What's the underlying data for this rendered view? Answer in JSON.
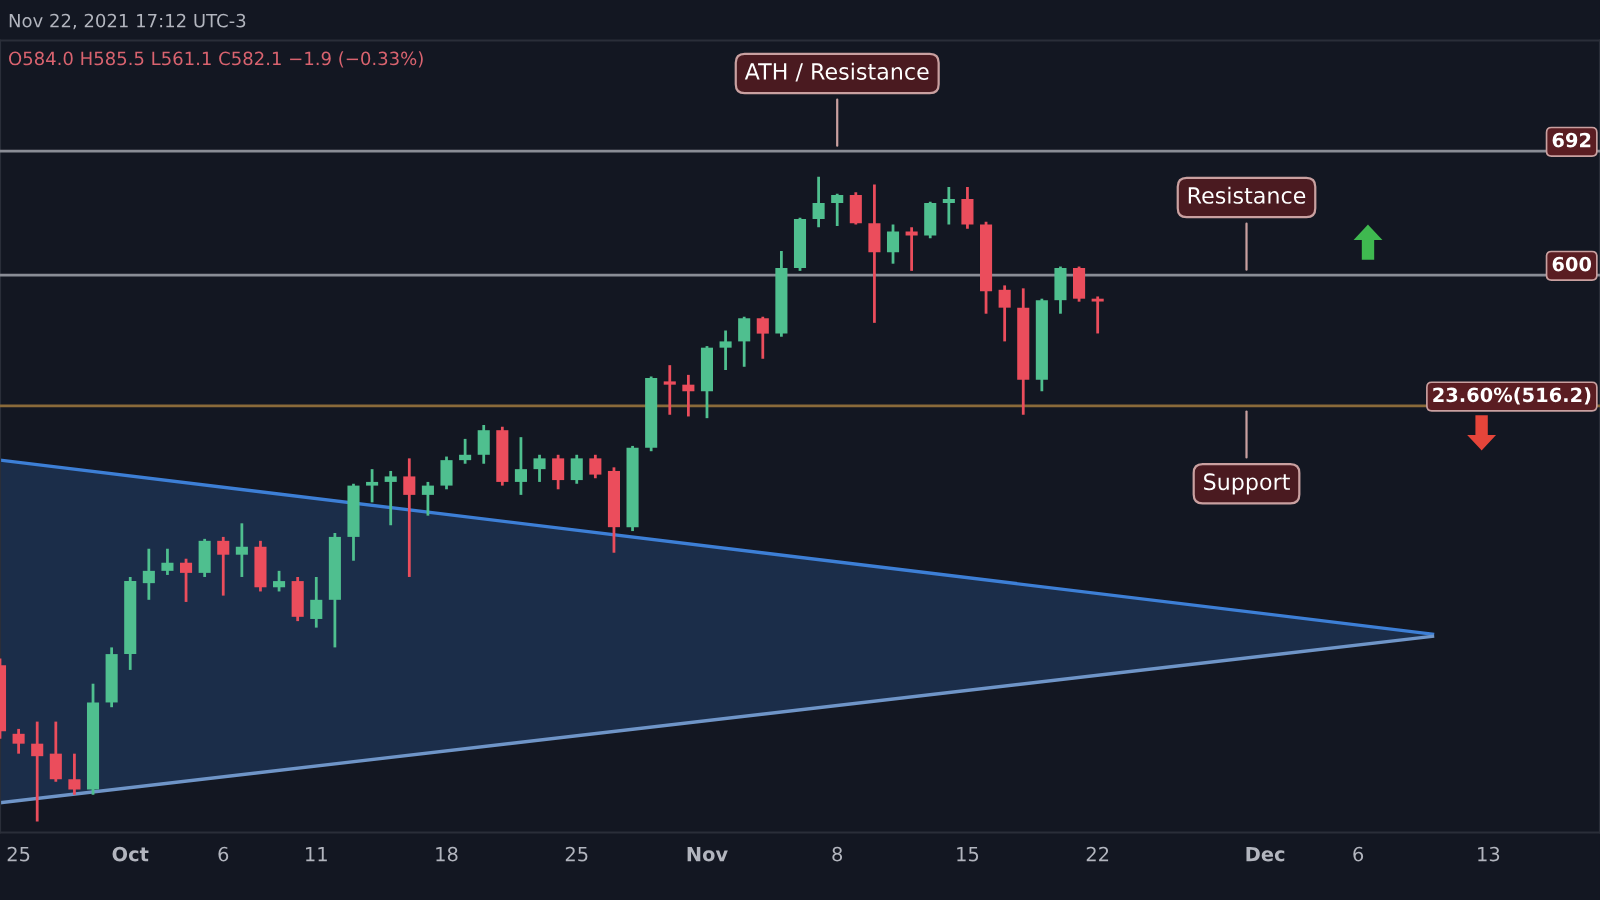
{
  "chart_data": {
    "type": "candlestick",
    "x": [
      "2021-09-24",
      "2021-09-25",
      "2021-09-26",
      "2021-09-27",
      "2021-09-28",
      "2021-09-29",
      "2021-09-30",
      "2021-10-01",
      "2021-10-02",
      "2021-10-03",
      "2021-10-04",
      "2021-10-05",
      "2021-10-06",
      "2021-10-07",
      "2021-10-08",
      "2021-10-09",
      "2021-10-10",
      "2021-10-11",
      "2021-10-12",
      "2021-10-13",
      "2021-10-14",
      "2021-10-15",
      "2021-10-16",
      "2021-10-17",
      "2021-10-18",
      "2021-10-19",
      "2021-10-20",
      "2021-10-21",
      "2021-10-22",
      "2021-10-23",
      "2021-10-24",
      "2021-10-25",
      "2021-10-26",
      "2021-10-27",
      "2021-10-28",
      "2021-10-29",
      "2021-10-30",
      "2021-10-31",
      "2021-11-01",
      "2021-11-02",
      "2021-11-03",
      "2021-11-04",
      "2021-11-05",
      "2021-11-06",
      "2021-11-07",
      "2021-11-08",
      "2021-11-09",
      "2021-11-10",
      "2021-11-11",
      "2021-11-12",
      "2021-11-13",
      "2021-11-14",
      "2021-11-15",
      "2021-11-16",
      "2021-11-17",
      "2021-11-18",
      "2021-11-19",
      "2021-11-20",
      "2021-11-21",
      "2021-11-22"
    ],
    "ohlc": [
      [
        383,
        386,
        352,
        355
      ],
      [
        354,
        356,
        346,
        350
      ],
      [
        350,
        359,
        320,
        345
      ],
      [
        346,
        359,
        335,
        336
      ],
      [
        336,
        346,
        330,
        332
      ],
      [
        332,
        375,
        330,
        367
      ],
      [
        367,
        391,
        365,
        388
      ],
      [
        388,
        424,
        381,
        422
      ],
      [
        421,
        438,
        413,
        427
      ],
      [
        427,
        438,
        425,
        431
      ],
      [
        431,
        433,
        412,
        426
      ],
      [
        426,
        443,
        424,
        442
      ],
      [
        442,
        444,
        415,
        435
      ],
      [
        435,
        451,
        424,
        439
      ],
      [
        439,
        442,
        417,
        419
      ],
      [
        419,
        427,
        417,
        422
      ],
      [
        422,
        424,
        403,
        405
      ],
      [
        404,
        424,
        400,
        413
      ],
      [
        413,
        446,
        391,
        444
      ],
      [
        444,
        472,
        432,
        471
      ],
      [
        471,
        480,
        462,
        473
      ],
      [
        473,
        479,
        450,
        476
      ],
      [
        476,
        486,
        424,
        466
      ],
      [
        466,
        473,
        455,
        471
      ],
      [
        471,
        487,
        469,
        485
      ],
      [
        485,
        497,
        483,
        488
      ],
      [
        488,
        505,
        483,
        502
      ],
      [
        502,
        504,
        471,
        473
      ],
      [
        473,
        498,
        466,
        480
      ],
      [
        480,
        488,
        473,
        486
      ],
      [
        486,
        488,
        469,
        474
      ],
      [
        474,
        488,
        472,
        486
      ],
      [
        486,
        488,
        475,
        477
      ],
      [
        479,
        481,
        436,
        449
      ],
      [
        449,
        493,
        447,
        492
      ],
      [
        492,
        534,
        490,
        533
      ],
      [
        531,
        541,
        511,
        529
      ],
      [
        529,
        535,
        510,
        525
      ],
      [
        525,
        553,
        509,
        552
      ],
      [
        552,
        563,
        538,
        556
      ],
      [
        556,
        572,
        540,
        571
      ],
      [
        571,
        572,
        545,
        561
      ],
      [
        561,
        617,
        559,
        605
      ],
      [
        605,
        641,
        603,
        640
      ],
      [
        640,
        672,
        634,
        652
      ],
      [
        652,
        659,
        635,
        658
      ],
      [
        658,
        660,
        636,
        637
      ],
      [
        637,
        666,
        568,
        616
      ],
      [
        616,
        636,
        608,
        631
      ],
      [
        631,
        634,
        603,
        628
      ],
      [
        628,
        653,
        626,
        652
      ],
      [
        652,
        664,
        636,
        655
      ],
      [
        655,
        664,
        633,
        636
      ],
      [
        636,
        638,
        574,
        589
      ],
      [
        590,
        593,
        556,
        578
      ],
      [
        578,
        591,
        511,
        532
      ],
      [
        532,
        584,
        525,
        583
      ],
      [
        583,
        606,
        574,
        605
      ],
      [
        605,
        606,
        582,
        584
      ],
      [
        584.0,
        585.5,
        561.1,
        582.1
      ]
    ],
    "colors": [
      "#eb4d5c",
      "#eb4d5c",
      "#eb4d5c",
      "#eb4d5c",
      "#eb4d5c",
      "#4fbf8f",
      "#4fbf8f",
      "#4fbf8f",
      "#4fbf8f",
      "#4fbf8f",
      "#eb4d5c",
      "#4fbf8f",
      "#eb4d5c",
      "#4fbf8f",
      "#eb4d5c",
      "#4fbf8f",
      "#eb4d5c",
      "#4fbf8f",
      "#4fbf8f",
      "#4fbf8f",
      "#4fbf8f",
      "#4fbf8f",
      "#eb4d5c",
      "#4fbf8f",
      "#4fbf8f",
      "#4fbf8f",
      "#4fbf8f",
      "#eb4d5c",
      "#4fbf8f",
      "#4fbf8f",
      "#eb4d5c",
      "#4fbf8f",
      "#eb4d5c",
      "#eb4d5c",
      "#4fbf8f",
      "#4fbf8f",
      "#eb4d5c",
      "#eb4d5c",
      "#4fbf8f",
      "#4fbf8f",
      "#4fbf8f",
      "#eb4d5c",
      "#4fbf8f",
      "#4fbf8f",
      "#4fbf8f",
      "#4fbf8f",
      "#eb4d5c",
      "#eb4d5c",
      "#4fbf8f",
      "#eb4d5c",
      "#4fbf8f",
      "#4fbf8f",
      "#eb4d5c",
      "#eb4d5c",
      "#eb4d5c",
      "#eb4d5c",
      "#4fbf8f",
      "#4fbf8f",
      "#eb4d5c",
      "#eb4d5c"
    ],
    "series": [
      {
        "type": "line",
        "color": "#3d7fd6",
        "x": [
          "2021-09-24",
          "2021-12-10"
        ],
        "values": [
          485,
          397
        ],
        "lower": [
          327,
          396
        ],
        "upper": [
          485,
          397
        ]
      },
      {
        "type": "line",
        "color": "#6f95c8",
        "x": [
          "2021-09-24",
          "2021-12-10"
        ],
        "values": [
          327,
          396
        ]
      }
    ],
    "ref_lines": [
      {
        "axis": "y",
        "value": 692,
        "label": "692",
        "color": "#8a8d96"
      },
      {
        "axis": "y",
        "value": 600,
        "label": "600",
        "color": "#8a8d96"
      },
      {
        "axis": "y",
        "value": 516.2,
        "label": "23.60%(516.2)",
        "color": "#8a6a3a"
      }
    ],
    "annotations": [
      "Nov 22, 2021 17:12 UTC-3",
      "O584.0 H585.5 L561.1 C582.1 −1.9 (−0.33%)",
      {
        "text": "ATH / Resistance",
        "x": "2021-11-08",
        "y": 692
      },
      {
        "text": "Resistance",
        "x": "2021-11-30",
        "y": 600
      },
      {
        "text": "Support",
        "x": "2021-11-30",
        "y": 516.2
      }
    ],
    "log": true,
    "ylim": [
      316,
      786
    ],
    "tick_labels": "x",
    "xlim": [
      "2021-09-24",
      "2021-12-19"
    ],
    "xticks": [
      {
        "value": "2021-09-25",
        "label": "25"
      },
      {
        "value": "2021-10-01",
        "label": "Oct"
      },
      {
        "value": "2021-10-06",
        "label": "6"
      },
      {
        "value": "2021-10-11",
        "label": "11"
      },
      {
        "value": "2021-10-18",
        "label": "18"
      },
      {
        "value": "2021-10-25",
        "label": "25"
      },
      {
        "value": "2021-11-01",
        "label": "Nov"
      },
      {
        "value": "2021-11-08",
        "label": "8"
      },
      {
        "value": "2021-11-15",
        "label": "15"
      },
      {
        "value": "2021-11-22",
        "label": "22"
      },
      {
        "value": "2021-12-01",
        "label": "Dec"
      },
      {
        "value": "2021-12-06",
        "label": "6"
      },
      {
        "value": "2021-12-13",
        "label": "13"
      }
    ],
    "grid": false
  }
}
